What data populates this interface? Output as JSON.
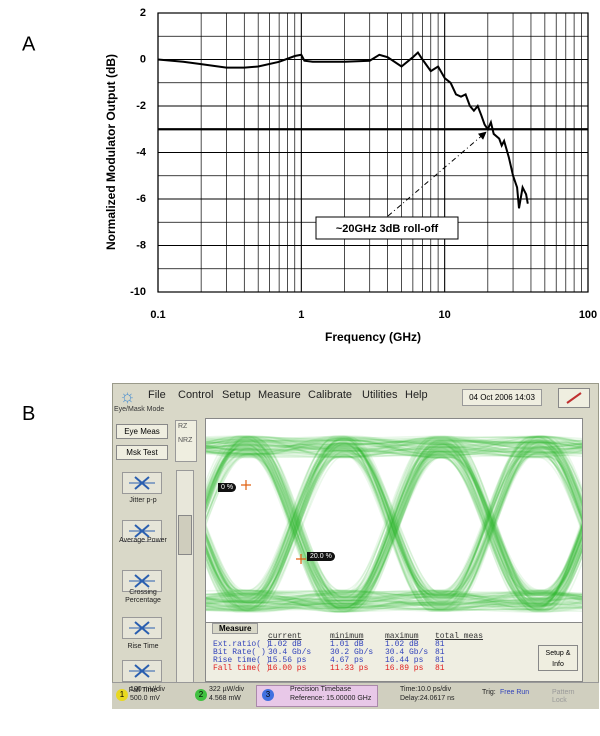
{
  "chart_data": {
    "type": "line",
    "panel_label": "A",
    "xlabel": "Frequency (GHz)",
    "ylabel": "Normalized Modulator Output (dB)",
    "x": [
      0.1,
      0.15,
      0.2,
      0.3,
      0.4,
      0.5,
      0.7,
      0.9,
      1.0,
      1.05,
      1.2,
      2,
      3,
      3.5,
      4,
      5,
      6,
      6.5,
      7,
      8,
      9,
      10,
      11,
      12,
      13,
      14,
      15,
      16,
      17,
      18,
      19,
      20,
      21,
      22,
      24,
      25,
      26,
      28,
      30,
      32,
      33,
      35,
      37,
      38
    ],
    "series": [
      {
        "color": "#000000",
        "values": [
          0,
          -0.1,
          -0.2,
          -0.35,
          -0.35,
          -0.3,
          -0.1,
          0.15,
          0.2,
          -0.05,
          -0.1,
          -0.1,
          -0.05,
          0.2,
          0.1,
          -0.3,
          0.1,
          0.3,
          0,
          -0.5,
          -0.3,
          -0.8,
          -1,
          -1.5,
          -1.6,
          -1.5,
          -2,
          -2.2,
          -2,
          -2.4,
          -2.8,
          -3,
          -2.7,
          -3.2,
          -3.4,
          -3.7,
          -3.5,
          -4.2,
          -5,
          -5.5,
          -6.4,
          -5.5,
          -5.8,
          -6.2
        ]
      }
    ],
    "xlim": [
      0.1,
      100
    ],
    "xticks": [
      0.1,
      1,
      10,
      100
    ],
    "xscale": "log",
    "ylim": [
      -10,
      2
    ],
    "yticks": [
      2,
      0,
      -2,
      -4,
      -6,
      -8,
      -10
    ],
    "grid": true,
    "hline": -3,
    "annotation": {
      "text": "~20GHz 3dB roll-off",
      "x": 20,
      "y": -3
    }
  },
  "panel_b": {
    "label": "B",
    "menu": [
      "File",
      "Control",
      "Setup",
      "Measure",
      "Calibrate",
      "Utilities",
      "Help"
    ],
    "datetime": "04 Oct 2006  14:03",
    "mode": "Eye/Mask Mode",
    "buttons": [
      "Eye Meas",
      "Msk Test"
    ],
    "format": [
      "RZ",
      "NRZ"
    ],
    "tools": [
      "Jitter p-p",
      "Average Power",
      "Crossing Percentage",
      "Rise Time",
      "Fall Time"
    ],
    "markers": [
      "0 %",
      "20.0 %"
    ],
    "measure": {
      "tab": "Measure",
      "columns": [
        "current",
        "minimum",
        "maximum",
        "total meas"
      ],
      "rows": [
        [
          "Ext.ratio( )",
          "1.02 dB",
          "1.01 dB",
          "1.02 dB",
          "81"
        ],
        [
          "Bit Rate( )",
          "30.4 Gb/s",
          "30.2 Gb/s",
          "30.4 Gb/s",
          "81"
        ],
        [
          "Rise time( )",
          "15.56 ps",
          "4.67 ps",
          "16.44 ps",
          "81"
        ],
        [
          "Fall time( )",
          "16.00 ps",
          "11.33 ps",
          "16.89 ps",
          "81"
        ]
      ]
    },
    "setup_button": "Setup & Info",
    "channels": [
      "1",
      "2",
      "3"
    ],
    "status": [
      "100 mV/div",
      "500.0 mV",
      "322 µW/div",
      "4.568 mW",
      "Precision Timebase",
      "Reference: 15.00000 GHz",
      "Time:10.0 ps/div",
      "Delay:24.0617 ns",
      "Trig:",
      "Free Run",
      "Pattern Lock"
    ]
  }
}
